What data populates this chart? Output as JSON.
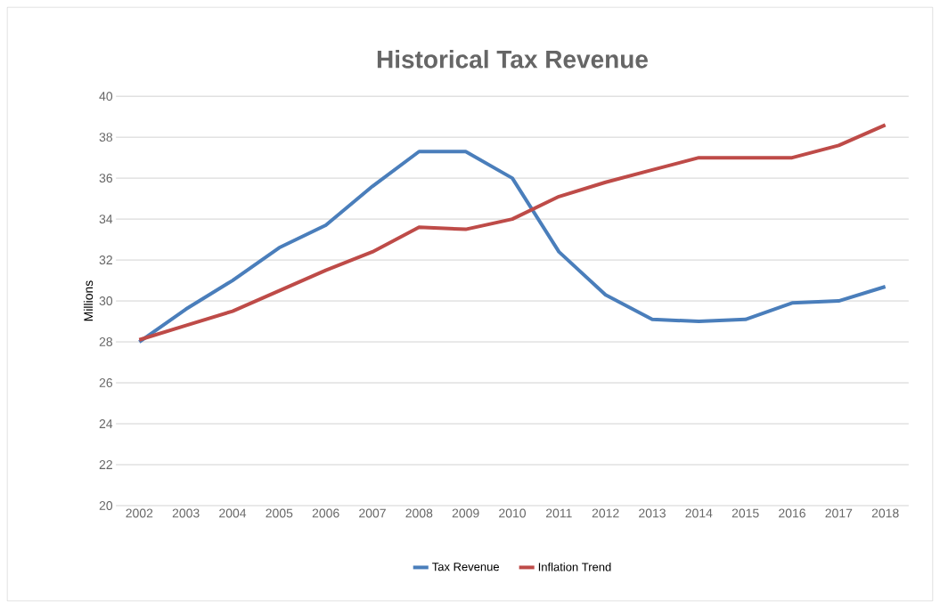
{
  "chart_data": {
    "type": "line",
    "title": "Historical Tax Revenue",
    "ylabel": "Millions",
    "categories": [
      "2002",
      "2003",
      "2004",
      "2005",
      "2006",
      "2007",
      "2008",
      "2009",
      "2010",
      "2011",
      "2012",
      "2013",
      "2014",
      "2015",
      "2016",
      "2017",
      "2018"
    ],
    "series": [
      {
        "name": "Tax Revenue",
        "color": "#4a7ebb",
        "values": [
          28.0,
          29.6,
          31.0,
          32.6,
          33.7,
          35.6,
          37.3,
          37.3,
          36.0,
          32.4,
          30.3,
          29.1,
          29.0,
          29.1,
          29.9,
          30.0,
          30.7
        ]
      },
      {
        "name": "Inflation Trend",
        "color": "#be4b48",
        "values": [
          28.1,
          28.8,
          29.5,
          30.5,
          31.5,
          32.4,
          33.6,
          33.5,
          34.0,
          35.1,
          35.8,
          36.4,
          37.0,
          37.0,
          37.0,
          37.6,
          38.6
        ]
      }
    ],
    "ylim": [
      20,
      40
    ],
    "yticks": [
      20,
      22,
      24,
      26,
      28,
      30,
      32,
      34,
      36,
      38,
      40
    ],
    "grid": "y",
    "legend": "bottom",
    "marker": "none",
    "line_style": "solid"
  }
}
